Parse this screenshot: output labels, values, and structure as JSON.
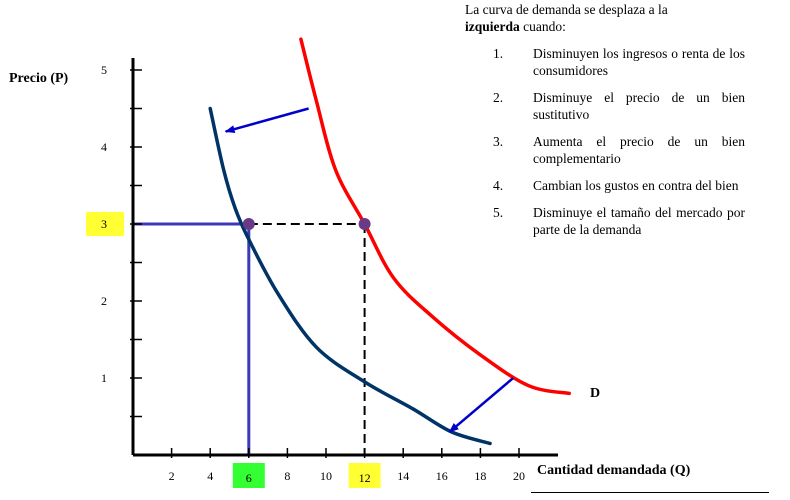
{
  "chart_data": {
    "type": "line",
    "xlabel": "Cantidad demandada (Q)",
    "ylabel": "Precio (P)",
    "x_ticks": [
      "2",
      "4",
      "6",
      "8",
      "10",
      "12",
      "14",
      "16",
      "18",
      "20"
    ],
    "y_ticks": [
      "1",
      "2",
      "3",
      "4",
      "5"
    ],
    "xlim": [
      0,
      22
    ],
    "ylim": [
      0,
      5.2
    ],
    "highlighted_ticks": [
      {
        "axis": "y",
        "label": "3",
        "color": "#ffff33"
      },
      {
        "axis": "x",
        "label": "6",
        "color": "#33ff33"
      },
      {
        "axis": "x",
        "label": "12",
        "color": "#ffff33"
      }
    ],
    "series": [
      {
        "name": "D",
        "color": "#ff0000",
        "points": [
          [
            8.7,
            5.4
          ],
          [
            9.5,
            4.6
          ],
          [
            10.5,
            3.7
          ],
          [
            12,
            3.0
          ],
          [
            13.5,
            2.3
          ],
          [
            15.5,
            1.8
          ],
          [
            18,
            1.3
          ],
          [
            20.5,
            0.9
          ],
          [
            22.6,
            0.8
          ]
        ]
      },
      {
        "name": "",
        "color": "#003366",
        "points": [
          [
            4,
            4.5
          ],
          [
            4.7,
            3.7
          ],
          [
            5.3,
            3.2
          ],
          [
            6,
            2.8
          ],
          [
            7.5,
            2.1
          ],
          [
            9.5,
            1.4
          ],
          [
            12,
            0.95
          ],
          [
            14.5,
            0.6
          ],
          [
            16.5,
            0.3
          ],
          [
            18.5,
            0.15
          ]
        ]
      }
    ],
    "points": [
      {
        "x": 6,
        "y": 3,
        "color": "#6b3a87"
      },
      {
        "x": 12,
        "y": 3,
        "color": "#6b3a87"
      }
    ],
    "guides": [
      {
        "style": "solid",
        "color": "#3a3ab8",
        "from": [
          0,
          3
        ],
        "to": [
          6,
          3
        ]
      },
      {
        "style": "solid",
        "color": "#3a3ab8",
        "from": [
          6,
          3
        ],
        "to": [
          6,
          0
        ]
      },
      {
        "style": "dashed",
        "color": "#000000",
        "from": [
          6,
          3
        ],
        "to": [
          12,
          3
        ]
      },
      {
        "style": "dashed",
        "color": "#000000",
        "from": [
          12,
          3
        ],
        "to": [
          12,
          0
        ]
      }
    ],
    "arrows": [
      {
        "color": "#0000cc",
        "from": [
          9.1,
          4.5
        ],
        "to": [
          4.8,
          4.2
        ]
      },
      {
        "color": "#0000cc",
        "from": [
          19.7,
          1.0
        ],
        "to": [
          16.4,
          0.3
        ]
      }
    ],
    "curve_label": "D"
  },
  "notes": {
    "intro_plain": "La curva de demanda se desplaza a la",
    "intro_bold": "izquierda",
    "intro_tail": "cuando:",
    "items": [
      {
        "num": "1.",
        "text": "Disminuyen los ingresos o renta de los consumidores"
      },
      {
        "num": "2.",
        "text": "Disminuye el precio de un bien sustitutivo"
      },
      {
        "num": "3.",
        "text": "Aumenta el precio de un bien complementario"
      },
      {
        "num": "4.",
        "text": "Cambian los gustos en contra del bien"
      },
      {
        "num": "5.",
        "text": "Disminuye el tamaño del mercado por parte de la demanda"
      }
    ]
  }
}
